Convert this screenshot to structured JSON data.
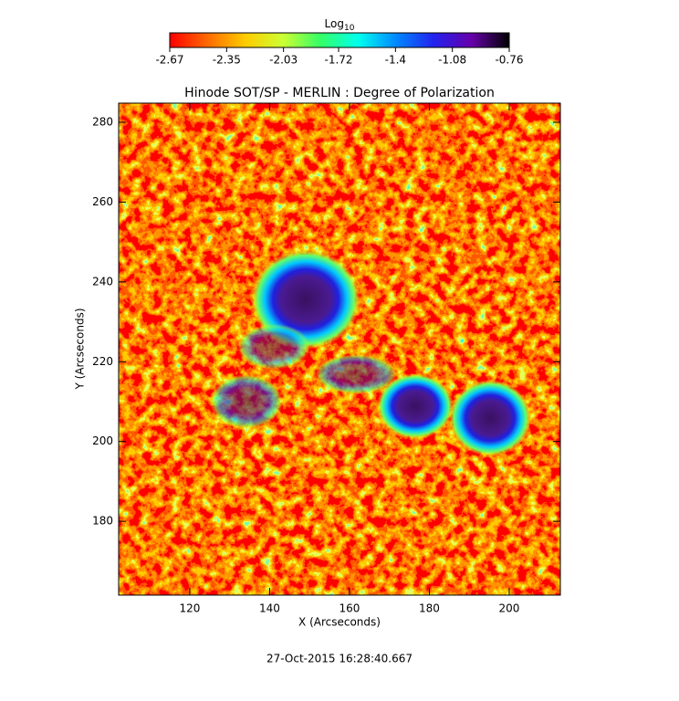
{
  "chart_data": {
    "type": "image",
    "title": "Hinode SOT/SP - MERLIN : Degree of Polarization",
    "xlabel": "X (Arcseconds)",
    "ylabel": "Y (Arcseconds)",
    "xlim": [
      102.2,
      212.8
    ],
    "ylim": [
      161.5,
      284.8
    ],
    "xticks": [
      120,
      140,
      160,
      180,
      200
    ],
    "yticks": [
      180,
      200,
      220,
      240,
      260,
      280
    ],
    "colorbar": {
      "label": "Log",
      "label_sub": "10",
      "lim": [
        -2.67,
        -0.76
      ],
      "ticks": [
        -2.67,
        -2.35,
        -2.03,
        -1.72,
        -1.4,
        -1.08,
        -0.76
      ],
      "colormap": [
        "#ff0000",
        "#ff6a00",
        "#ffcc00",
        "#ccff33",
        "#33ff66",
        "#00ffee",
        "#0088ff",
        "#2222ee",
        "#6600aa",
        "#000000"
      ]
    },
    "footer": "27-Oct-2015 16:28:40.667"
  }
}
